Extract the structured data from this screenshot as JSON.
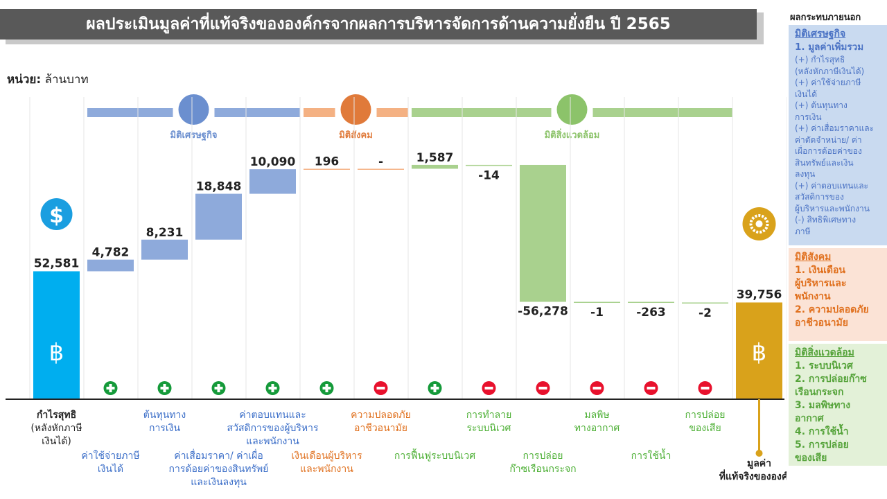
{
  "title": "ผลประเมินมูลค่าที่แท้จริงขององค์กรจากผลการบริหารจัดการด้านความยั่งยืน ปี 2565",
  "unit_label_bold": "หน่วย:",
  "unit_label_text": "ล้านบาท",
  "colors": {
    "start_bar": "#00aeef",
    "economic": "#8eaadb",
    "social": "#f4b183",
    "environment": "#a9d18e",
    "end_bar": "#d9a21b",
    "plus_icon": "#159a3a",
    "minus_icon": "#e8112d"
  },
  "dimension_labels": {
    "economic": "มิติเศรษฐกิจ",
    "social": "มิติสังคม",
    "environment": "มิติสิ่งแวดล้อม"
  },
  "chart_data": {
    "type": "bar",
    "subtype": "waterfall",
    "ylim": [
      0,
      122500
    ],
    "start": {
      "category": "กำไรสุทธิ (หลังหักภาษีเงินได้)",
      "value": 52581,
      "label": "52,581",
      "label_lines": [
        "กำไรสุทธิ",
        "(หลังหักภาษี",
        "เงินได้)"
      ]
    },
    "steps": [
      {
        "category": "ค่าใช้จ่ายภาษีเงินได้",
        "value": 4782,
        "label": "4,782",
        "sign": "+",
        "dimension": "economic",
        "label_lines": [
          "ค่าใช้จ่ายภาษี",
          "เงินได้"
        ],
        "label_row": "lower"
      },
      {
        "category": "ต้นทุนทางการเงิน",
        "value": 8231,
        "label": "8,231",
        "sign": "+",
        "dimension": "economic",
        "label_lines": [
          "ต้นทุนทาง",
          "การเงิน"
        ],
        "label_row": "upper"
      },
      {
        "category": "ค่าเสื่อมราคา/ ค่าเผื่อการด้อยค่าของสินทรัพย์และเงินลงทุน",
        "value": 18848,
        "label": "18,848",
        "sign": "+",
        "dimension": "economic",
        "label_lines": [
          "ค่าเสื่อมราคา/ ค่าเผื่อ",
          "การด้อยค่าของสินทรัพย์",
          "และเงินลงทุน"
        ],
        "label_row": "lower"
      },
      {
        "category": "ค่าตอบแทนและสวัสดิการของผู้บริหารและพนักงาน",
        "value": 10090,
        "label": "10,090",
        "sign": "+",
        "dimension": "economic",
        "label_lines": [
          "ค่าตอบแทนและ",
          "สวัสดิการของผู้บริหาร",
          "และพนักงาน"
        ],
        "label_row": "upper"
      },
      {
        "category": "เงินเดือนผู้บริหารและพนักงาน",
        "value": 196,
        "label": "196",
        "sign": "+",
        "dimension": "social",
        "label_lines": [
          "เงินเดือนผู้บริหาร",
          "และพนักงาน"
        ],
        "label_row": "lower"
      },
      {
        "category": "ความปลอดภัยอาชีวอนามัย",
        "value": 0,
        "label": "-",
        "sign": "-",
        "dimension": "social",
        "label_lines": [
          "ความปลอดภัย",
          "อาชีวอนามัย"
        ],
        "label_row": "upper"
      },
      {
        "category": "การฟื้นฟูระบบนิเวศ",
        "value": 1587,
        "label": "1,587",
        "sign": "+",
        "dimension": "environment",
        "label_lines": [
          "การฟื้นฟูระบบนิเวศ"
        ],
        "label_row": "lower"
      },
      {
        "category": "การทำลายระบบนิเวศ",
        "value": -14,
        "label": "-14",
        "sign": "-",
        "dimension": "environment",
        "label_lines": [
          "การทำลาย",
          "ระบบนิเวศ"
        ],
        "label_row": "upper"
      },
      {
        "category": "การปล่อยก๊าซเรือนกระจก",
        "value": -56278,
        "label": "-56,278",
        "sign": "-",
        "dimension": "environment",
        "label_lines": [
          "การปล่อย",
          "ก๊าซเรือนกระจก"
        ],
        "label_row": "lower"
      },
      {
        "category": "มลพิษทางอากาศ",
        "value": -1,
        "label": "-1",
        "sign": "-",
        "dimension": "environment",
        "label_lines": [
          "มลพิษ",
          "ทางอากาศ"
        ],
        "label_row": "upper"
      },
      {
        "category": "การใช้น้ำ",
        "value": -263,
        "label": "-263",
        "sign": "-",
        "dimension": "environment",
        "label_lines": [
          "การใช้น้ำ"
        ],
        "label_row": "lower"
      },
      {
        "category": "การปล่อยของเสีย",
        "value": -2,
        "label": "-2",
        "sign": "-",
        "dimension": "environment",
        "label_lines": [
          "การปล่อย",
          "ของเสีย"
        ],
        "label_row": "upper"
      }
    ],
    "end": {
      "category": "มูลค่าที่แท้จริงขององค์กร",
      "value": 39756,
      "label": "39,756",
      "label_lines": [
        "มูลค่า",
        "ที่แท้จริงขององค์กร"
      ]
    },
    "currency_symbol": "฿",
    "dollar_symbol": "$"
  },
  "sidebar": {
    "title": "ผลกระทบภายนอก",
    "economic": {
      "heading": "มิติเศรษฐกิจ",
      "subheading": "1. มูลค่าเพิ่มรวม",
      "lines": [
        "(+) กำไรสุทธิ",
        "(หลังหักภาษีเงินได้)",
        "(+) ค่าใช้จ่ายภาษี",
        "เงินได้",
        "(+) ต้นทุนทาง",
        "การเงิน",
        "(+) ค่าเสื่อมราคาและ",
        "ค่าตัดจำหน่าย/ ค่า",
        "เผื่อการด้อยค่าของ",
        "สินทรัพย์และเงิน",
        "ลงทุน",
        "(+) ค่าตอบแทนและ",
        "สวัสดิการของ",
        "ผู้บริหารและพนักงาน",
        "(-) สิทธิพิเศษทาง",
        "ภาษี"
      ]
    },
    "social": {
      "heading": "มิติสังคม",
      "lines": [
        "1. เงินเดือน",
        "ผู้บริหารและ",
        "พนักงาน",
        "2. ความปลอดภัย",
        "อาชีวอนามัย"
      ]
    },
    "environment": {
      "heading": "มิติสิ่งแวดล้อม",
      "lines": [
        "1. ระบบนิเวศ",
        "2. การปล่อยก๊าซ",
        "เรือนกระจก",
        "3. มลพิษทาง",
        "อากาศ",
        "4. การใช้น้ำ",
        "5. การปล่อย",
        "ของเสีย"
      ]
    }
  }
}
